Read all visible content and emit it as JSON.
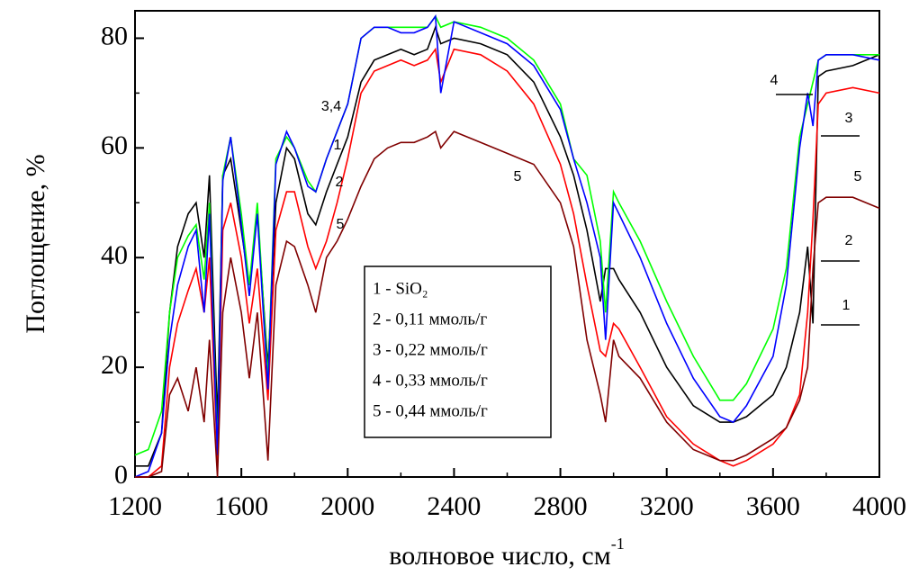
{
  "chart_data": {
    "type": "line",
    "x_label": "волновое число, см",
    "x_label_sup": "-1",
    "y_label": "Поглощение, %",
    "xlim": [
      1200,
      4000
    ],
    "xticks": [
      1200,
      1600,
      2000,
      2400,
      2800,
      3200,
      3600,
      4000
    ],
    "ylim": [
      0,
      85
    ],
    "yticks": [
      0,
      20,
      40,
      60,
      80
    ],
    "x": [
      1200,
      1250,
      1300,
      1330,
      1360,
      1400,
      1430,
      1460,
      1480,
      1510,
      1530,
      1560,
      1600,
      1630,
      1660,
      1700,
      1730,
      1770,
      1800,
      1850,
      1880,
      1920,
      1960,
      2000,
      2050,
      2100,
      2150,
      2200,
      2250,
      2300,
      2330,
      2350,
      2400,
      2500,
      2600,
      2700,
      2800,
      2850,
      2900,
      2950,
      2970,
      3000,
      3020,
      3100,
      3200,
      3300,
      3400,
      3450,
      3500,
      3600,
      3650,
      3700,
      3730,
      3750,
      3770,
      3800,
      3900,
      4000
    ],
    "series": [
      {
        "name": "1 - SiO₂",
        "color": "#000000",
        "values": [
          2,
          2,
          8,
          30,
          42,
          48,
          50,
          40,
          55,
          10,
          55,
          58,
          45,
          35,
          48,
          20,
          50,
          60,
          58,
          48,
          46,
          52,
          57,
          62,
          72,
          76,
          77,
          78,
          77,
          78,
          82,
          79,
          80,
          79,
          77,
          72,
          62,
          55,
          45,
          32,
          38,
          38,
          36,
          30,
          20,
          13,
          10,
          10,
          11,
          15,
          20,
          30,
          42,
          28,
          73,
          74,
          75,
          77
        ]
      },
      {
        "name": "2 - 0,11 ммоль/г",
        "color": "#ff0000",
        "values": [
          0,
          0,
          2,
          20,
          28,
          34,
          38,
          30,
          40,
          3,
          45,
          50,
          40,
          28,
          38,
          14,
          45,
          52,
          52,
          42,
          38,
          43,
          50,
          58,
          70,
          74,
          75,
          76,
          75,
          76,
          78,
          72,
          78,
          77,
          74,
          68,
          57,
          48,
          35,
          23,
          22,
          28,
          27,
          20,
          11,
          6,
          3,
          2,
          3,
          6,
          9,
          15,
          30,
          47,
          68,
          70,
          71,
          70
        ]
      },
      {
        "name": "3 - 0,22 ммоль/г",
        "color": "#00ff00",
        "values": [
          4,
          5,
          12,
          30,
          40,
          44,
          46,
          36,
          50,
          5,
          55,
          62,
          48,
          35,
          50,
          18,
          58,
          62,
          60,
          54,
          52,
          58,
          63,
          68,
          80,
          82,
          82,
          82,
          82,
          82,
          84,
          82,
          83,
          82,
          80,
          76,
          68,
          58,
          55,
          43,
          30,
          52,
          50,
          43,
          32,
          22,
          14,
          14,
          17,
          27,
          38,
          62,
          68,
          72,
          76,
          77,
          77,
          77
        ]
      },
      {
        "name": "4 - 0,33 ммоль/г",
        "color": "#0000ff",
        "values": [
          0,
          1,
          8,
          25,
          35,
          42,
          45,
          30,
          48,
          4,
          54,
          62,
          46,
          33,
          48,
          16,
          57,
          63,
          60,
          53,
          52,
          58,
          63,
          68,
          80,
          82,
          82,
          81,
          81,
          82,
          84,
          70,
          83,
          81,
          79,
          75,
          67,
          58,
          50,
          40,
          25,
          50,
          48,
          40,
          28,
          18,
          11,
          10,
          13,
          22,
          35,
          60,
          70,
          64,
          76,
          77,
          77,
          76
        ]
      },
      {
        "name": "5 - 0,44 ммоль/г",
        "color": "#800000",
        "values": [
          0,
          0,
          1,
          15,
          18,
          12,
          20,
          10,
          25,
          0,
          30,
          40,
          30,
          18,
          30,
          3,
          35,
          43,
          42,
          35,
          30,
          40,
          43,
          47,
          53,
          58,
          60,
          61,
          61,
          62,
          63,
          60,
          63,
          61,
          59,
          57,
          50,
          42,
          25,
          15,
          10,
          25,
          22,
          18,
          10,
          5,
          3,
          3,
          4,
          7,
          9,
          14,
          20,
          38,
          50,
          51,
          51,
          49
        ]
      }
    ],
    "annotations": [
      "3,4",
      "1",
      "2",
      "5",
      "5",
      "4",
      "3",
      "5",
      "2",
      "1"
    ]
  }
}
